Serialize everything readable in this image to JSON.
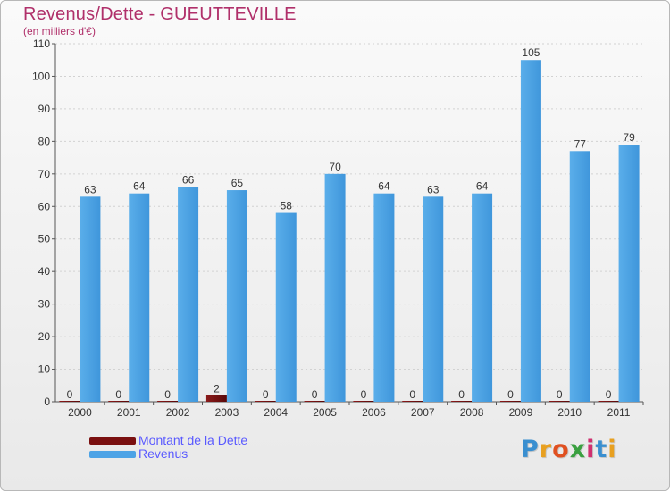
{
  "page": {
    "title": "Revenus/Dette - GUEUTTEVILLE",
    "subtitle": "(en milliers d'€)"
  },
  "legend": {
    "items": [
      {
        "label": "Montant de la Dette",
        "color": "#7a1010"
      },
      {
        "label": "Revenus",
        "color": "#4da3e6"
      }
    ]
  },
  "logo": {
    "letters": [
      "P",
      "r",
      "o",
      "x",
      "i",
      "t",
      "i"
    ],
    "colors": [
      "#3a8fd0",
      "#e8a020",
      "#e05020",
      "#3aa040",
      "#d03070",
      "#3a8fd0",
      "#e8a020"
    ]
  },
  "chart_data": {
    "type": "bar",
    "title": "Revenus/Dette - GUEUTTEVILLE",
    "ylabel": "(en milliers d'€)",
    "xlabel": "",
    "ylim": [
      0,
      110
    ],
    "yticks": [
      0,
      10,
      20,
      30,
      40,
      50,
      60,
      70,
      80,
      90,
      100,
      110
    ],
    "grid": true,
    "legend_position": "bottom-left",
    "categories": [
      "2000",
      "2001",
      "2002",
      "2003",
      "2004",
      "2005",
      "2006",
      "2007",
      "2008",
      "2009",
      "2010",
      "2011"
    ],
    "series": [
      {
        "name": "Montant de la Dette",
        "color": "#7a1010",
        "values": [
          0,
          0,
          0,
          2,
          0,
          0,
          0,
          0,
          0,
          0,
          0,
          0
        ]
      },
      {
        "name": "Revenus",
        "color": "#4da3e6",
        "values": [
          63,
          64,
          66,
          65,
          58,
          70,
          64,
          63,
          64,
          105,
          77,
          79
        ]
      }
    ]
  }
}
